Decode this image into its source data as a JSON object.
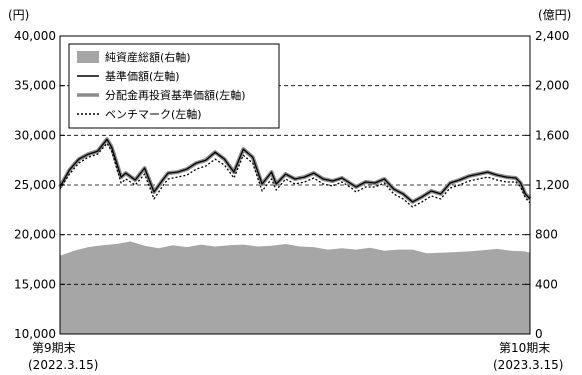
{
  "chart_data": {
    "type": "line",
    "left_axis": {
      "unit": "(円)",
      "ylim": [
        10000,
        40000
      ],
      "ticks": [
        10000,
        15000,
        20000,
        25000,
        30000,
        35000,
        40000
      ],
      "tick_labels": [
        "10,000",
        "15,000",
        "20,000",
        "25,000",
        "30,000",
        "35,000",
        "40,000"
      ]
    },
    "right_axis": {
      "unit": "(億円)",
      "ylim": [
        0,
        2400
      ],
      "ticks": [
        0,
        400,
        800,
        1200,
        1600,
        2000,
        2400
      ],
      "tick_labels": [
        "0",
        "400",
        "800",
        "1,200",
        "1,600",
        "2,000",
        "2,400"
      ]
    },
    "x_labels": {
      "start": {
        "period": "第9期末",
        "date": "(2022.3.15)"
      },
      "end": {
        "period": "第10期末",
        "date": "(2023.3.15)"
      }
    },
    "grid": "horizontal dashed",
    "legend_position": "top-left",
    "colors": {
      "area": "#a6a6a6",
      "nav": "#000000",
      "reinvest": "#8c8c8c",
      "benchmark": "#000000"
    },
    "series": [
      {
        "name": "純資産総額(右軸)",
        "kind": "area",
        "axis": "right",
        "x": [
          0,
          3,
          6,
          9,
          12,
          15,
          18,
          21,
          24,
          27,
          30,
          33,
          36,
          39,
          42,
          45,
          48,
          51,
          54,
          57,
          60,
          63,
          66,
          69,
          72,
          75,
          78,
          81,
          84,
          87,
          90,
          93,
          96,
          99,
          100
        ],
        "values": [
          630,
          670,
          700,
          715,
          725,
          745,
          710,
          690,
          715,
          700,
          720,
          705,
          715,
          720,
          705,
          710,
          725,
          705,
          700,
          680,
          690,
          680,
          695,
          670,
          680,
          680,
          650,
          655,
          660,
          665,
          675,
          685,
          670,
          665,
          655
        ]
      },
      {
        "name": "基準価額(左軸)",
        "kind": "line",
        "axis": "left",
        "x": [
          0,
          2,
          4,
          6,
          8,
          10,
          11,
          13,
          14,
          16,
          18,
          20,
          22,
          23,
          25,
          27,
          29,
          31,
          33,
          35,
          37,
          39,
          41,
          43,
          45,
          46,
          48,
          50,
          52,
          54,
          56,
          58,
          60,
          62,
          63,
          65,
          67,
          69,
          71,
          73,
          75,
          77,
          79,
          81,
          83,
          85,
          87,
          89,
          91,
          93,
          95,
          97,
          98,
          99,
          100
        ],
        "values": [
          24800,
          26500,
          27600,
          28100,
          28400,
          29600,
          28800,
          25800,
          26200,
          25500,
          26700,
          24300,
          25600,
          26200,
          26300,
          26600,
          27200,
          27500,
          28300,
          27600,
          26300,
          28600,
          27800,
          25100,
          26300,
          25100,
          26100,
          25600,
          25800,
          26200,
          25600,
          25400,
          25700,
          25100,
          24800,
          25300,
          25200,
          25600,
          24600,
          24100,
          23300,
          23800,
          24400,
          24100,
          25200,
          25500,
          25900,
          26100,
          26300,
          26000,
          25800,
          25700,
          25200,
          24100,
          23600
        ]
      },
      {
        "name": "分配金再投資基準価額(左軸)",
        "kind": "line",
        "axis": "left",
        "x": [
          0,
          2,
          4,
          6,
          8,
          10,
          11,
          13,
          14,
          16,
          18,
          20,
          22,
          23,
          25,
          27,
          29,
          31,
          33,
          35,
          37,
          39,
          41,
          43,
          45,
          46,
          48,
          50,
          52,
          54,
          56,
          58,
          60,
          62,
          63,
          65,
          67,
          69,
          71,
          73,
          75,
          77,
          79,
          81,
          83,
          85,
          87,
          89,
          91,
          93,
          95,
          97,
          98,
          99,
          100
        ],
        "values": [
          24800,
          26500,
          27600,
          28100,
          28400,
          29600,
          28800,
          25800,
          26200,
          25500,
          26700,
          24300,
          25600,
          26200,
          26300,
          26600,
          27200,
          27500,
          28300,
          27600,
          26300,
          28600,
          27800,
          25100,
          26300,
          25100,
          26100,
          25600,
          25800,
          26200,
          25600,
          25400,
          25700,
          25100,
          24800,
          25300,
          25200,
          25600,
          24600,
          24100,
          23300,
          23800,
          24400,
          24100,
          25200,
          25500,
          25900,
          26100,
          26300,
          26000,
          25800,
          25700,
          25200,
          24100,
          23600
        ]
      },
      {
        "name": "ベンチマーク(左軸)",
        "kind": "dotted",
        "axis": "left",
        "x": [
          0,
          2,
          4,
          6,
          8,
          10,
          11,
          13,
          14,
          16,
          18,
          20,
          22,
          23,
          25,
          27,
          29,
          31,
          33,
          35,
          37,
          39,
          41,
          43,
          45,
          46,
          48,
          50,
          52,
          54,
          56,
          58,
          60,
          62,
          63,
          65,
          67,
          69,
          71,
          73,
          75,
          77,
          79,
          81,
          83,
          85,
          87,
          89,
          91,
          93,
          95,
          97,
          98,
          99,
          100
        ],
        "values": [
          24600,
          26100,
          27200,
          27800,
          28100,
          29200,
          28400,
          25200,
          25600,
          25000,
          26100,
          23600,
          25000,
          25600,
          25800,
          26000,
          26600,
          26900,
          27600,
          27000,
          25700,
          28000,
          27200,
          24400,
          25600,
          24500,
          25600,
          25100,
          25300,
          25700,
          25100,
          24900,
          25300,
          24700,
          24300,
          24800,
          24800,
          25200,
          24100,
          23600,
          22800,
          23300,
          23900,
          23600,
          24700,
          25000,
          25400,
          25600,
          25800,
          25500,
          25300,
          25300,
          24800,
          23700,
          23200
        ]
      }
    ]
  }
}
